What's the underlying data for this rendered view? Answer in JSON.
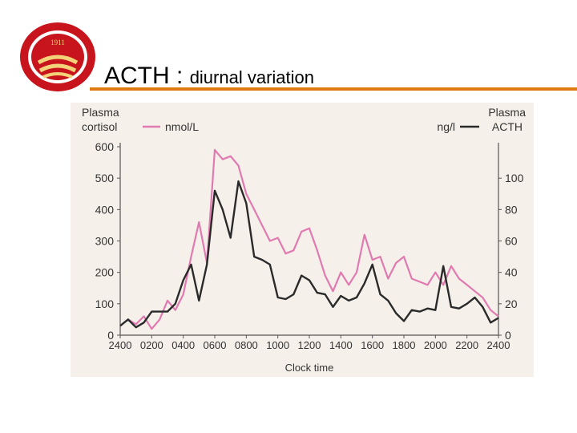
{
  "slide": {
    "title_main": "ACTH",
    "title_sep": " : ",
    "title_sub": "diurnal variation",
    "logo_year": "1911",
    "accent_color": "#e07a10",
    "logo_color": "#c8141c",
    "logo_icon": "university-seal-icon"
  },
  "chart_data": {
    "type": "line",
    "xlabel": "Clock time",
    "ylabel_left_line1": "Plasma",
    "ylabel_left_line2": "cortisol",
    "ylabel_right_line1": "Plasma",
    "ylabel_right_line2": "ACTH",
    "x_ticks": [
      "2400",
      "0200",
      "0400",
      "0600",
      "0800",
      "1000",
      "1200",
      "1400",
      "1600",
      "1800",
      "2000",
      "2200",
      "2400"
    ],
    "y_left_ticks": [
      0,
      100,
      200,
      300,
      400,
      500,
      600
    ],
    "y_right_ticks": [
      0,
      20,
      40,
      60,
      80,
      100
    ],
    "ylim_left": [
      0,
      600
    ],
    "ylim_right": [
      0,
      120
    ],
    "xlim": [
      0,
      24
    ],
    "grid": false,
    "legend_placement": "top",
    "series": [
      {
        "name": "nmol/L",
        "color": "#e07ab0",
        "axis": "left",
        "x": [
          0,
          0.5,
          1,
          1.5,
          2,
          2.5,
          3,
          3.5,
          4,
          4.5,
          5,
          5.5,
          6,
          6.5,
          7,
          7.5,
          8,
          8.5,
          9,
          9.5,
          10,
          10.5,
          11,
          11.5,
          12,
          12.5,
          13,
          13.5,
          14,
          14.5,
          15,
          15.5,
          16,
          16.5,
          17,
          17.5,
          18,
          18.5,
          19,
          19.5,
          20,
          20.5,
          21,
          21.5,
          22,
          22.5,
          23,
          23.5,
          24
        ],
        "values": [
          30,
          50,
          35,
          60,
          20,
          50,
          110,
          80,
          130,
          250,
          360,
          230,
          590,
          560,
          570,
          540,
          450,
          400,
          350,
          300,
          310,
          260,
          270,
          330,
          340,
          270,
          190,
          140,
          200,
          160,
          200,
          320,
          240,
          250,
          180,
          230,
          250,
          180,
          170,
          160,
          200,
          160,
          220,
          180,
          160,
          140,
          120,
          80,
          60
        ]
      },
      {
        "name": "ng/l",
        "color": "#2a2a2a",
        "axis": "right",
        "x": [
          0,
          0.5,
          1,
          1.5,
          2,
          2.5,
          3,
          3.5,
          4,
          4.5,
          5,
          5.5,
          6,
          6.5,
          7,
          7.5,
          8,
          8.5,
          9,
          9.5,
          10,
          10.5,
          11,
          11.5,
          12,
          12.5,
          13,
          13.5,
          14,
          14.5,
          15,
          15.5,
          16,
          16.5,
          17,
          17.5,
          18,
          18.5,
          19,
          19.5,
          20,
          20.5,
          21,
          21.5,
          22,
          22.5,
          23,
          23.5,
          24
        ],
        "values": [
          6,
          10,
          5,
          8,
          15,
          15,
          15,
          20,
          35,
          45,
          22,
          45,
          92,
          80,
          62,
          98,
          84,
          50,
          48,
          45,
          24,
          23,
          26,
          38,
          35,
          27,
          26,
          18,
          25,
          22,
          24,
          33,
          45,
          26,
          22,
          14,
          9,
          16,
          15,
          17,
          16,
          44,
          18,
          17,
          20,
          24,
          18,
          8,
          11
        ]
      }
    ]
  }
}
